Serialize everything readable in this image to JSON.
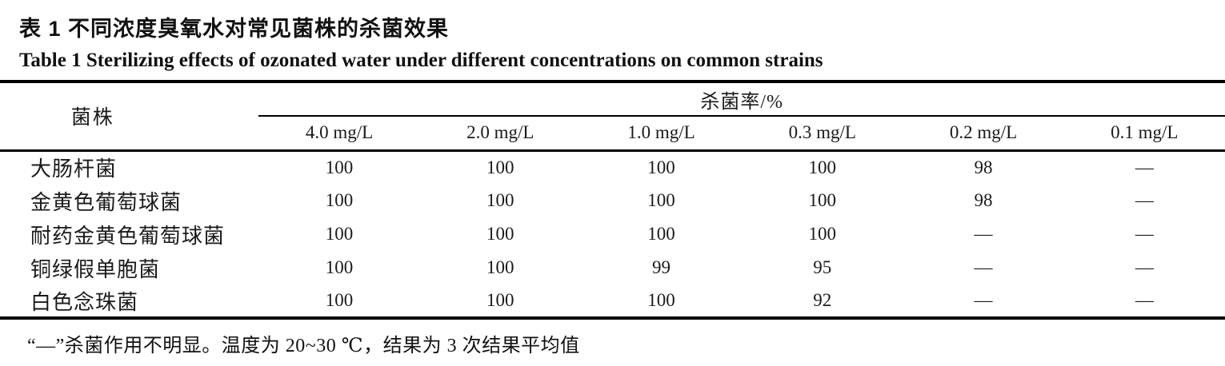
{
  "titles": {
    "cn": "表 1  不同浓度臭氧水对常见菌株的杀菌效果",
    "en": "Table 1   Sterilizing effects of ozonated water under different concentrations on common strains"
  },
  "table": {
    "strain_header": "菌株",
    "span_header": "杀菌率/%",
    "conc_headers": [
      "4.0 mg/L",
      "2.0 mg/L",
      "1.0 mg/L",
      "0.3 mg/L",
      "0.2 mg/L",
      "0.1 mg/L"
    ],
    "rows": [
      {
        "name": "大肠杆菌",
        "values": [
          "100",
          "100",
          "100",
          "100",
          "98",
          "—"
        ]
      },
      {
        "name": "金黄色葡萄球菌",
        "values": [
          "100",
          "100",
          "100",
          "100",
          "98",
          "—"
        ]
      },
      {
        "name": "耐药金黄色葡萄球菌",
        "values": [
          "100",
          "100",
          "100",
          "100",
          "—",
          "—"
        ]
      },
      {
        "name": "铜绿假单胞菌",
        "values": [
          "100",
          "100",
          "99",
          "95",
          "—",
          "—"
        ]
      },
      {
        "name": "白色念珠菌",
        "values": [
          "100",
          "100",
          "100",
          "92",
          "—",
          "—"
        ]
      }
    ]
  },
  "footnote": "“—”杀菌作用不明显。温度为 20~30 ℃，结果为 3 次结果平均值",
  "colors": {
    "text": "#1a1a1a",
    "rule": "#000000",
    "background": "#ffffff"
  }
}
